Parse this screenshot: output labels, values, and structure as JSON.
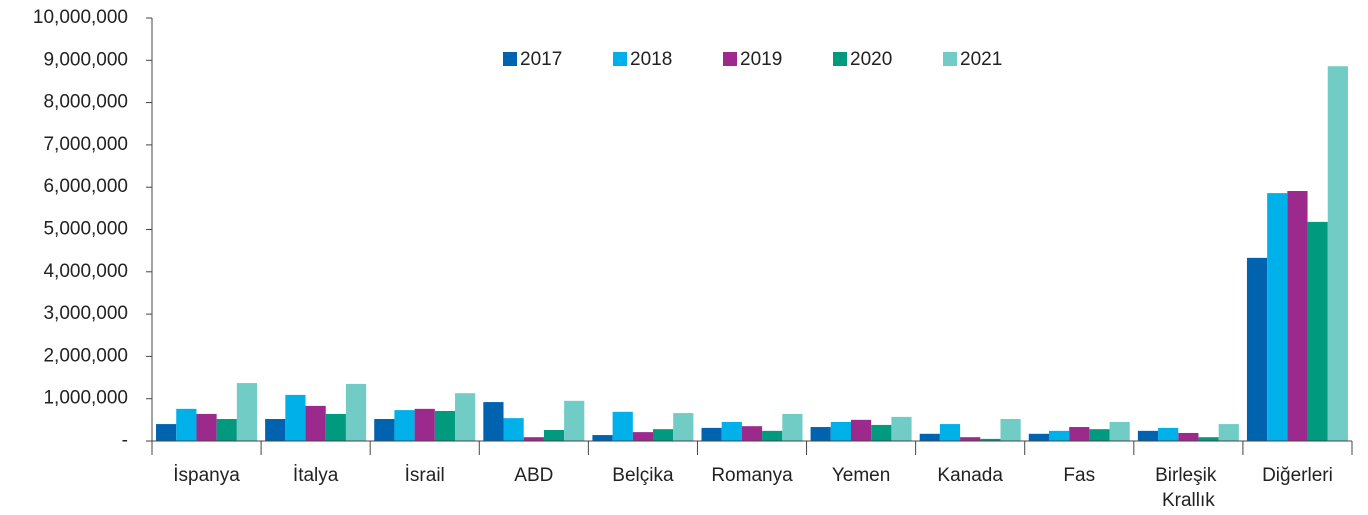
{
  "chart_data": {
    "type": "bar",
    "categories": [
      "İspanya",
      "İtalya",
      "İsrail",
      "ABD",
      "Belçika",
      "Romanya",
      "Yemen",
      "Kanada",
      "Fas",
      "Birleşik Krallık",
      "Diğerleri"
    ],
    "series": [
      {
        "name": "2017",
        "color": "#0063b0",
        "values": [
          400000,
          520000,
          520000,
          920000,
          140000,
          310000,
          330000,
          170000,
          170000,
          240000,
          4330000
        ]
      },
      {
        "name": "2018",
        "color": "#00b0e8",
        "values": [
          760000,
          1090000,
          730000,
          540000,
          690000,
          450000,
          450000,
          400000,
          240000,
          310000,
          5860000
        ]
      },
      {
        "name": "2019",
        "color": "#9b2a8c",
        "values": [
          640000,
          830000,
          760000,
          90000,
          210000,
          350000,
          500000,
          90000,
          330000,
          190000,
          5910000
        ]
      },
      {
        "name": "2020",
        "color": "#009a7e",
        "values": [
          520000,
          640000,
          710000,
          260000,
          280000,
          240000,
          380000,
          50000,
          280000,
          90000,
          5180000
        ]
      },
      {
        "name": "2021",
        "color": "#72ccc6",
        "values": [
          1370000,
          1350000,
          1130000,
          950000,
          660000,
          640000,
          570000,
          520000,
          450000,
          400000,
          8860000
        ]
      }
    ],
    "ylim": [
      0,
      10000000
    ],
    "yticks": [
      {
        "value": 0,
        "label": "-"
      },
      {
        "value": 1000000,
        "label": "1,000,000"
      },
      {
        "value": 2000000,
        "label": "2,000,000"
      },
      {
        "value": 3000000,
        "label": "3,000,000"
      },
      {
        "value": 4000000,
        "label": "4,000,000"
      },
      {
        "value": 5000000,
        "label": "5,000,000"
      },
      {
        "value": 6000000,
        "label": "6,000,000"
      },
      {
        "value": 7000000,
        "label": "7,000,000"
      },
      {
        "value": 8000000,
        "label": "8,000,000"
      },
      {
        "value": 9000000,
        "label": "9,000,000"
      },
      {
        "value": 10000000,
        "label": "10,000,000"
      }
    ],
    "legend": "top"
  }
}
